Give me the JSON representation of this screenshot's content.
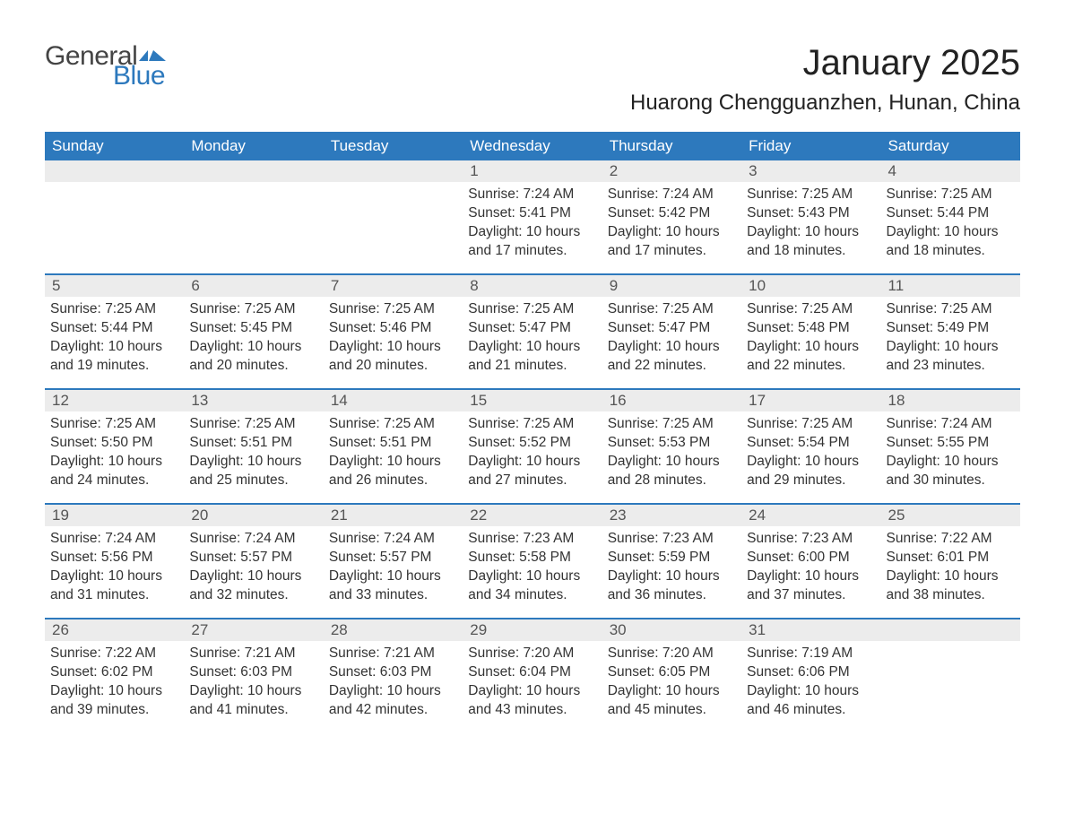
{
  "logo": {
    "general": "General",
    "blue": "Blue"
  },
  "title": "January 2025",
  "location": "Huarong Chengguanzhen, Hunan, China",
  "colors": {
    "header_bg": "#2d79bd",
    "header_fg": "#ffffff",
    "daynum_bg": "#ececec",
    "text": "#333333",
    "week_divider": "#2d79bd",
    "page_bg": "#ffffff"
  },
  "fonts": {
    "title_size_pt": 30,
    "location_size_pt": 18,
    "dow_size_pt": 13,
    "body_size_pt": 11.5,
    "family": "Arial"
  },
  "days_of_week": [
    "Sunday",
    "Monday",
    "Tuesday",
    "Wednesday",
    "Thursday",
    "Friday",
    "Saturday"
  ],
  "labels": {
    "sunrise": "Sunrise:",
    "sunset": "Sunset:",
    "daylight": "Daylight:"
  },
  "weeks": [
    [
      {
        "empty": true
      },
      {
        "empty": true
      },
      {
        "empty": true
      },
      {
        "num": "1",
        "sunrise": "7:24 AM",
        "sunset": "5:41 PM",
        "daylight": "10 hours and 17 minutes."
      },
      {
        "num": "2",
        "sunrise": "7:24 AM",
        "sunset": "5:42 PM",
        "daylight": "10 hours and 17 minutes."
      },
      {
        "num": "3",
        "sunrise": "7:25 AM",
        "sunset": "5:43 PM",
        "daylight": "10 hours and 18 minutes."
      },
      {
        "num": "4",
        "sunrise": "7:25 AM",
        "sunset": "5:44 PM",
        "daylight": "10 hours and 18 minutes."
      }
    ],
    [
      {
        "num": "5",
        "sunrise": "7:25 AM",
        "sunset": "5:44 PM",
        "daylight": "10 hours and 19 minutes."
      },
      {
        "num": "6",
        "sunrise": "7:25 AM",
        "sunset": "5:45 PM",
        "daylight": "10 hours and 20 minutes."
      },
      {
        "num": "7",
        "sunrise": "7:25 AM",
        "sunset": "5:46 PM",
        "daylight": "10 hours and 20 minutes."
      },
      {
        "num": "8",
        "sunrise": "7:25 AM",
        "sunset": "5:47 PM",
        "daylight": "10 hours and 21 minutes."
      },
      {
        "num": "9",
        "sunrise": "7:25 AM",
        "sunset": "5:47 PM",
        "daylight": "10 hours and 22 minutes."
      },
      {
        "num": "10",
        "sunrise": "7:25 AM",
        "sunset": "5:48 PM",
        "daylight": "10 hours and 22 minutes."
      },
      {
        "num": "11",
        "sunrise": "7:25 AM",
        "sunset": "5:49 PM",
        "daylight": "10 hours and 23 minutes."
      }
    ],
    [
      {
        "num": "12",
        "sunrise": "7:25 AM",
        "sunset": "5:50 PM",
        "daylight": "10 hours and 24 minutes."
      },
      {
        "num": "13",
        "sunrise": "7:25 AM",
        "sunset": "5:51 PM",
        "daylight": "10 hours and 25 minutes."
      },
      {
        "num": "14",
        "sunrise": "7:25 AM",
        "sunset": "5:51 PM",
        "daylight": "10 hours and 26 minutes."
      },
      {
        "num": "15",
        "sunrise": "7:25 AM",
        "sunset": "5:52 PM",
        "daylight": "10 hours and 27 minutes."
      },
      {
        "num": "16",
        "sunrise": "7:25 AM",
        "sunset": "5:53 PM",
        "daylight": "10 hours and 28 minutes."
      },
      {
        "num": "17",
        "sunrise": "7:25 AM",
        "sunset": "5:54 PM",
        "daylight": "10 hours and 29 minutes."
      },
      {
        "num": "18",
        "sunrise": "7:24 AM",
        "sunset": "5:55 PM",
        "daylight": "10 hours and 30 minutes."
      }
    ],
    [
      {
        "num": "19",
        "sunrise": "7:24 AM",
        "sunset": "5:56 PM",
        "daylight": "10 hours and 31 minutes."
      },
      {
        "num": "20",
        "sunrise": "7:24 AM",
        "sunset": "5:57 PM",
        "daylight": "10 hours and 32 minutes."
      },
      {
        "num": "21",
        "sunrise": "7:24 AM",
        "sunset": "5:57 PM",
        "daylight": "10 hours and 33 minutes."
      },
      {
        "num": "22",
        "sunrise": "7:23 AM",
        "sunset": "5:58 PM",
        "daylight": "10 hours and 34 minutes."
      },
      {
        "num": "23",
        "sunrise": "7:23 AM",
        "sunset": "5:59 PM",
        "daylight": "10 hours and 36 minutes."
      },
      {
        "num": "24",
        "sunrise": "7:23 AM",
        "sunset": "6:00 PM",
        "daylight": "10 hours and 37 minutes."
      },
      {
        "num": "25",
        "sunrise": "7:22 AM",
        "sunset": "6:01 PM",
        "daylight": "10 hours and 38 minutes."
      }
    ],
    [
      {
        "num": "26",
        "sunrise": "7:22 AM",
        "sunset": "6:02 PM",
        "daylight": "10 hours and 39 minutes."
      },
      {
        "num": "27",
        "sunrise": "7:21 AM",
        "sunset": "6:03 PM",
        "daylight": "10 hours and 41 minutes."
      },
      {
        "num": "28",
        "sunrise": "7:21 AM",
        "sunset": "6:03 PM",
        "daylight": "10 hours and 42 minutes."
      },
      {
        "num": "29",
        "sunrise": "7:20 AM",
        "sunset": "6:04 PM",
        "daylight": "10 hours and 43 minutes."
      },
      {
        "num": "30",
        "sunrise": "7:20 AM",
        "sunset": "6:05 PM",
        "daylight": "10 hours and 45 minutes."
      },
      {
        "num": "31",
        "sunrise": "7:19 AM",
        "sunset": "6:06 PM",
        "daylight": "10 hours and 46 minutes."
      },
      {
        "empty": true
      }
    ]
  ]
}
